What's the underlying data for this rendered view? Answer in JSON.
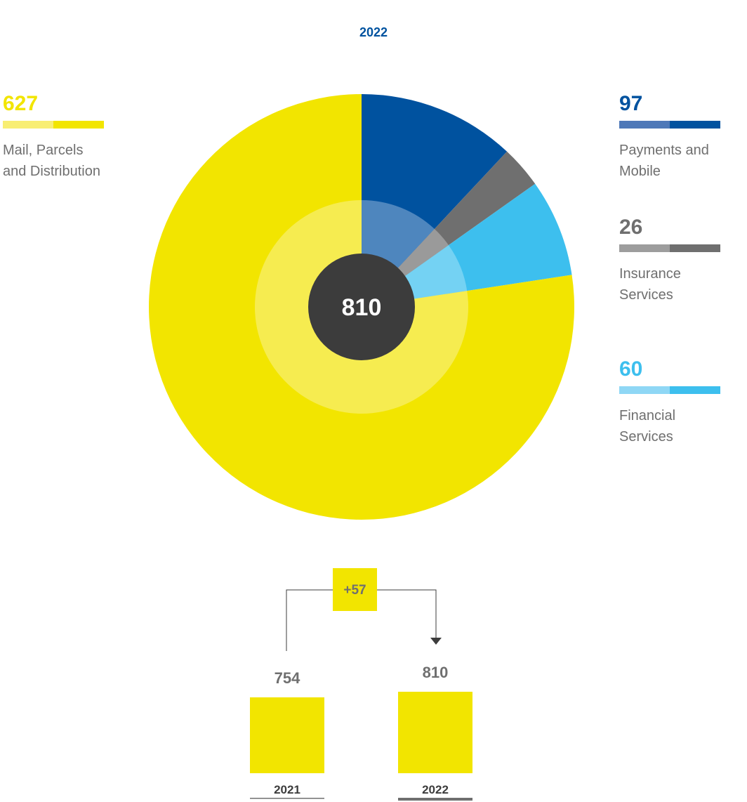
{
  "title": "2022",
  "chart_data": [
    {
      "type": "pie",
      "title": "2022",
      "total": 810,
      "slices": [
        {
          "name": "Payments and Mobile",
          "value": 97,
          "color": "#00529f",
          "inner_color": "#4e86be",
          "legend_light": "#4e78b8"
        },
        {
          "name": "Insurance Services",
          "value": 26,
          "color": "#6f6f6f",
          "inner_color": "#9a9a9a",
          "legend_light": "#9d9d9d"
        },
        {
          "name": "Financial Services",
          "value": 60,
          "color": "#3dbfee",
          "inner_color": "#74d2f3",
          "legend_light": "#8fd7f5"
        },
        {
          "name": "Mail, Parcels and Distribution",
          "value": 627,
          "color": "#f2e500",
          "inner_color": "#f6ec50",
          "legend_light": "#f8ee73"
        }
      ],
      "legend_labels": {
        "mail": [
          "Mail, Parcels",
          "and Distribution"
        ],
        "payments": [
          "Payments and",
          "Mobile"
        ],
        "insurance": [
          "Insurance",
          "Services"
        ],
        "financial": [
          "Financial",
          "Services"
        ]
      }
    },
    {
      "type": "bar",
      "categories": [
        "2021",
        "2022"
      ],
      "values": [
        754,
        810
      ],
      "change_label": "+57",
      "bar_color": "#f2e500",
      "value_color": "#6f6f6f"
    }
  ]
}
